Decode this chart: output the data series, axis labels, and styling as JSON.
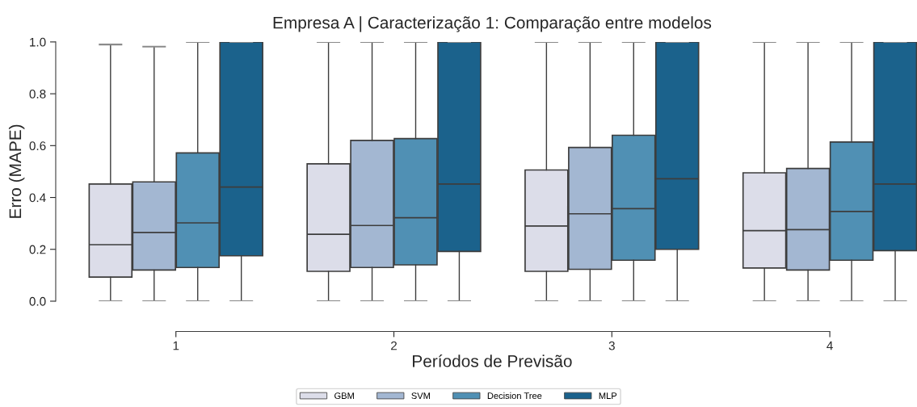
{
  "chart_data": {
    "type": "box",
    "title": "Empresa A | Caracterização 1: Comparação entre modelos",
    "xlabel": "Períodos de Previsão",
    "ylabel": "Erro (MAPE)",
    "categories": [
      "1",
      "2",
      "3",
      "4"
    ],
    "ylim": [
      0,
      1
    ],
    "yticks": [
      {
        "value": 0,
        "label": "0.0"
      },
      {
        "value": 0.2,
        "label": "0.2"
      },
      {
        "value": 0.4,
        "label": "0.4"
      },
      {
        "value": 0.6,
        "label": "0.6"
      },
      {
        "value": 0.8,
        "label": "0.8"
      },
      {
        "value": 1,
        "label": "1.0"
      }
    ],
    "grid": false,
    "legend": "bottom",
    "series": [
      {
        "name": "GBM",
        "color": "#dcdde9",
        "boxes": [
          {
            "low": 0,
            "q1": 0.093,
            "median": 0.218,
            "q3": 0.452,
            "high": 0.99
          },
          {
            "low": 0,
            "q1": 0.115,
            "median": 0.258,
            "q3": 0.53,
            "high": 1.0
          },
          {
            "low": 0,
            "q1": 0.115,
            "median": 0.29,
            "q3": 0.506,
            "high": 1.0
          },
          {
            "low": 0,
            "q1": 0.128,
            "median": 0.272,
            "q3": 0.495,
            "high": 1.0
          }
        ]
      },
      {
        "name": "SVM",
        "color": "#a3b7d2",
        "boxes": [
          {
            "low": 0,
            "q1": 0.12,
            "median": 0.265,
            "q3": 0.46,
            "high": 0.982
          },
          {
            "low": 0,
            "q1": 0.13,
            "median": 0.292,
            "q3": 0.62,
            "high": 1.0
          },
          {
            "low": 0,
            "q1": 0.123,
            "median": 0.337,
            "q3": 0.593,
            "high": 1.0
          },
          {
            "low": 0,
            "q1": 0.12,
            "median": 0.276,
            "q3": 0.512,
            "high": 1.0
          }
        ]
      },
      {
        "name": "Decision Tree",
        "color": "#5090b4",
        "boxes": [
          {
            "low": 0,
            "q1": 0.13,
            "median": 0.302,
            "q3": 0.572,
            "high": 1.0
          },
          {
            "low": 0,
            "q1": 0.14,
            "median": 0.322,
            "q3": 0.627,
            "high": 1.0
          },
          {
            "low": 0,
            "q1": 0.158,
            "median": 0.357,
            "q3": 0.64,
            "high": 1.0
          },
          {
            "low": 0,
            "q1": 0.158,
            "median": 0.346,
            "q3": 0.614,
            "high": 1.0
          }
        ]
      },
      {
        "name": "MLP",
        "color": "#1b628c",
        "boxes": [
          {
            "low": 0,
            "q1": 0.175,
            "median": 0.44,
            "q3": 1.0,
            "high": 1.0
          },
          {
            "low": 0,
            "q1": 0.192,
            "median": 0.452,
            "q3": 1.0,
            "high": 1.0
          },
          {
            "low": 0,
            "q1": 0.2,
            "median": 0.472,
            "q3": 1.0,
            "high": 1.0
          },
          {
            "low": 0,
            "q1": 0.195,
            "median": 0.452,
            "q3": 1.0,
            "high": 1.0
          }
        ]
      }
    ]
  }
}
